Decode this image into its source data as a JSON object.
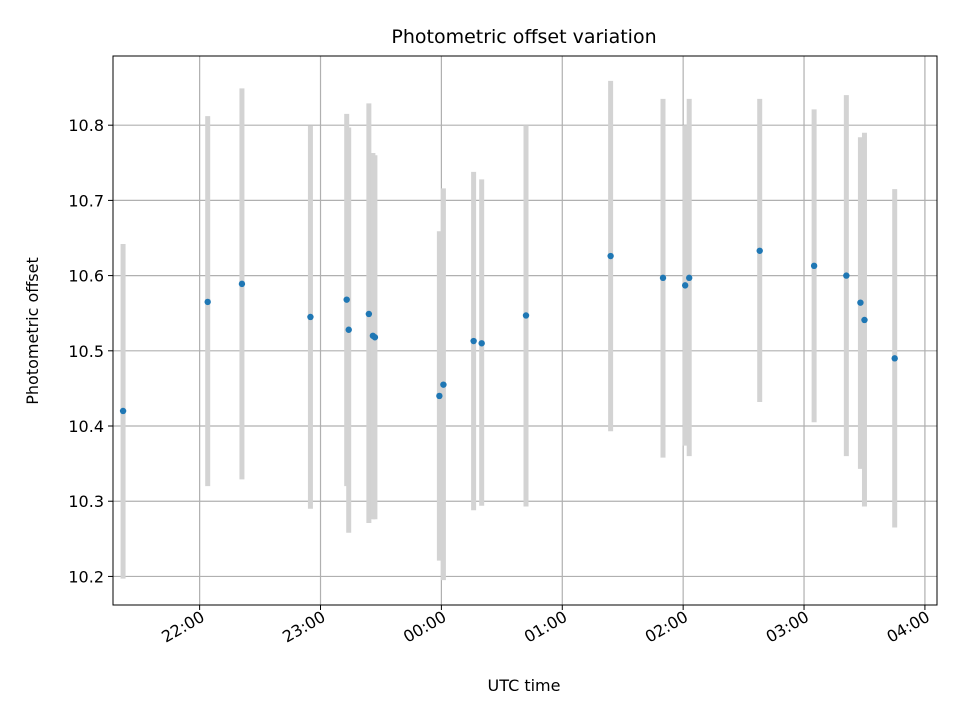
{
  "chart_data": {
    "type": "scatter",
    "title": "Photometric offset variation",
    "xlabel": "UTC time",
    "ylabel": "Photometric offset",
    "grid": true,
    "legend": "none",
    "x_axis_type": "time",
    "xlim": [
      "21:17",
      "04:06"
    ],
    "ylim": [
      10.162,
      10.892
    ],
    "x_ticks": [
      "22:00",
      "23:00",
      "00:00",
      "01:00",
      "02:00",
      "03:00",
      "04:00"
    ],
    "y_ticks": [
      "10.2",
      "10.3",
      "10.4",
      "10.5",
      "10.6",
      "10.7",
      "10.8"
    ],
    "colors": {
      "point": "#1f77b4",
      "errorbar": "#d3d3d3",
      "grid": "#b0b0b0"
    },
    "points": [
      {
        "t": "21:22",
        "y": 10.42,
        "ylo": 10.197,
        "yhi": 10.642
      },
      {
        "t": "22:04",
        "y": 10.565,
        "ylo": 10.32,
        "yhi": 10.812
      },
      {
        "t": "22:21",
        "y": 10.589,
        "ylo": 10.329,
        "yhi": 10.849
      },
      {
        "t": "22:55",
        "y": 10.545,
        "ylo": 10.29,
        "yhi": 10.799
      },
      {
        "t": "23:13",
        "y": 10.568,
        "ylo": 10.32,
        "yhi": 10.815
      },
      {
        "t": "23:14",
        "y": 10.528,
        "ylo": 10.258,
        "yhi": 10.797
      },
      {
        "t": "23:24",
        "y": 10.549,
        "ylo": 10.271,
        "yhi": 10.829
      },
      {
        "t": "23:26",
        "y": 10.52,
        "ylo": 10.276,
        "yhi": 10.763
      },
      {
        "t": "23:27",
        "y": 10.518,
        "ylo": 10.276,
        "yhi": 10.76
      },
      {
        "t": "23:59",
        "y": 10.44,
        "ylo": 10.221,
        "yhi": 10.659
      },
      {
        "t": "00:01",
        "y": 10.455,
        "ylo": 10.195,
        "yhi": 10.716
      },
      {
        "t": "00:16",
        "y": 10.513,
        "ylo": 10.288,
        "yhi": 10.738
      },
      {
        "t": "00:20",
        "y": 10.51,
        "ylo": 10.294,
        "yhi": 10.728
      },
      {
        "t": "00:42",
        "y": 10.547,
        "ylo": 10.293,
        "yhi": 10.8
      },
      {
        "t": "01:24",
        "y": 10.626,
        "ylo": 10.393,
        "yhi": 10.859
      },
      {
        "t": "01:50",
        "y": 10.597,
        "ylo": 10.358,
        "yhi": 10.835
      },
      {
        "t": "02:01",
        "y": 10.587,
        "ylo": 10.374,
        "yhi": 10.8
      },
      {
        "t": "02:03",
        "y": 10.597,
        "ylo": 10.36,
        "yhi": 10.835
      },
      {
        "t": "02:38",
        "y": 10.633,
        "ylo": 10.432,
        "yhi": 10.835
      },
      {
        "t": "03:05",
        "y": 10.613,
        "ylo": 10.405,
        "yhi": 10.821
      },
      {
        "t": "03:21",
        "y": 10.6,
        "ylo": 10.36,
        "yhi": 10.84
      },
      {
        "t": "03:28",
        "y": 10.564,
        "ylo": 10.343,
        "yhi": 10.784
      },
      {
        "t": "03:30",
        "y": 10.541,
        "ylo": 10.293,
        "yhi": 10.79
      },
      {
        "t": "03:45",
        "y": 10.49,
        "ylo": 10.265,
        "yhi": 10.715
      }
    ]
  }
}
